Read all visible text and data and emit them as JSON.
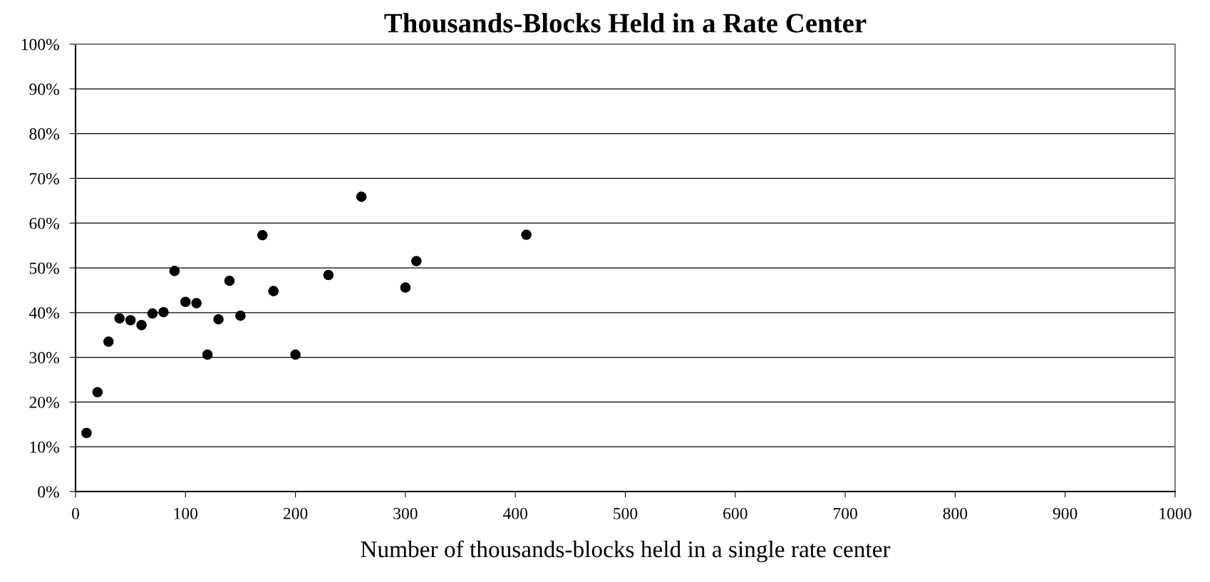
{
  "chart_data": {
    "type": "scatter",
    "title": "Thousands-Blocks Held in a Rate Center",
    "xlabel": "Number of thousands-blocks held in a single rate center",
    "x": [
      10,
      20,
      30,
      40,
      50,
      60,
      70,
      80,
      90,
      100,
      110,
      120,
      130,
      140,
      150,
      170,
      180,
      200,
      230,
      260,
      300,
      310,
      410
    ],
    "series": [
      {
        "color": "#000000",
        "values": [
          13.1,
          22.2,
          33.5,
          38.7,
          38.3,
          37.2,
          39.8,
          40.1,
          49.3,
          42.4,
          42.1,
          30.6,
          38.5,
          47.1,
          39.3,
          57.3,
          44.8,
          30.6,
          48.4,
          65.9,
          45.6,
          51.5,
          57.4
        ]
      }
    ],
    "xlim": [
      0,
      1000
    ],
    "xticks": [
      0,
      100,
      200,
      300,
      400,
      500,
      600,
      700,
      800,
      900,
      1000
    ],
    "ylim": [
      0,
      100
    ],
    "yticks": [
      {
        "value": 0,
        "label": "0%"
      },
      {
        "value": 10,
        "label": "10%"
      },
      {
        "value": 20,
        "label": "20%"
      },
      {
        "value": 30,
        "label": "30%"
      },
      {
        "value": 40,
        "label": "40%"
      },
      {
        "value": 50,
        "label": "50%"
      },
      {
        "value": 60,
        "label": "60%"
      },
      {
        "value": 70,
        "label": "70%"
      },
      {
        "value": 80,
        "label": "80%"
      },
      {
        "value": 90,
        "label": "90%"
      },
      {
        "value": 100,
        "label": "100%"
      }
    ],
    "grid": "y",
    "marker": "circle",
    "legend": false
  }
}
